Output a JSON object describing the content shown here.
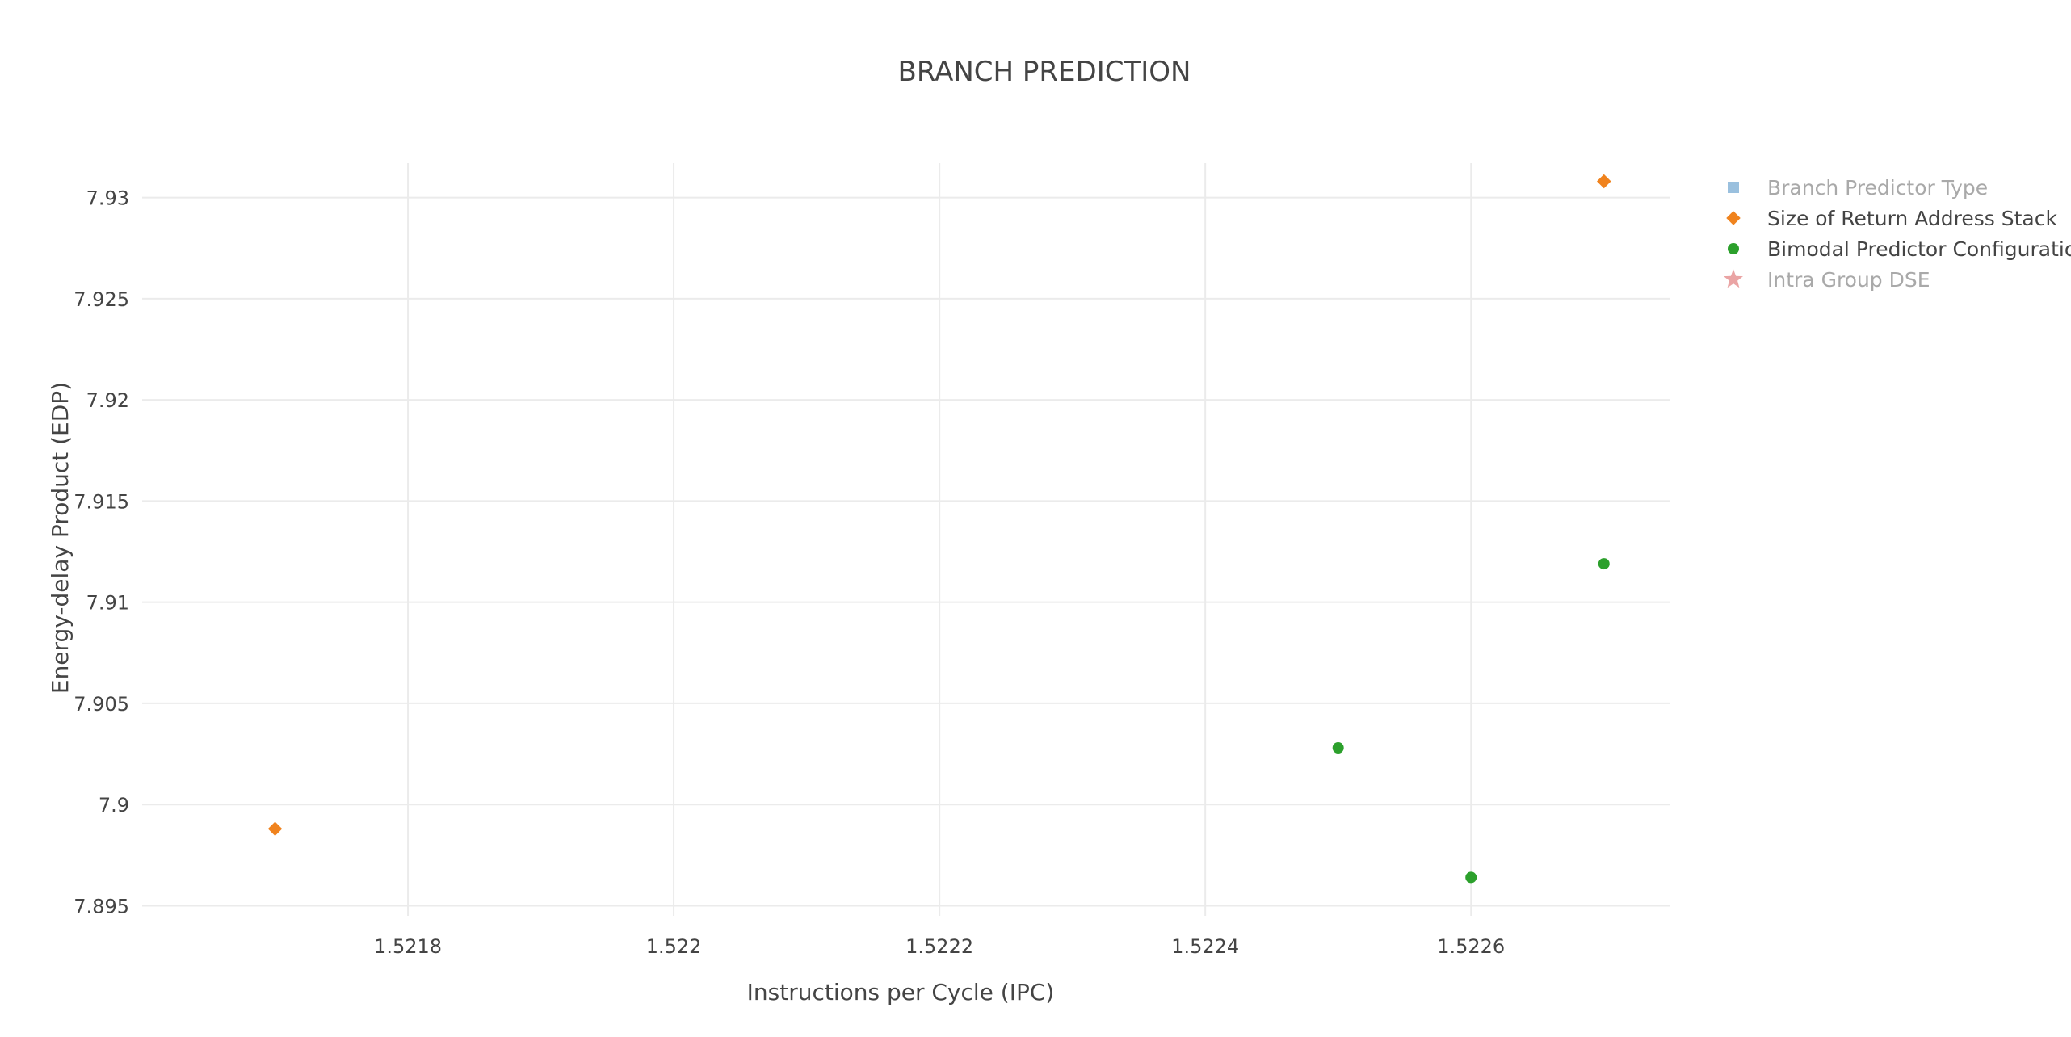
{
  "chart_data": {
    "type": "scatter",
    "title": "BRANCH PREDICTION",
    "xlabel": "Instructions per Cycle (IPC)",
    "ylabel": "Energy-delay Product (EDP)",
    "xlim": [
      1.5216,
      1.52275
    ],
    "ylim": [
      7.8945,
      7.9317
    ],
    "xticks": [
      1.5218,
      1.522,
      1.5222,
      1.5224,
      1.5226
    ],
    "xtick_labels": [
      "1.5218",
      "1.522",
      "1.5222",
      "1.5224",
      "1.5226"
    ],
    "yticks": [
      7.895,
      7.9,
      7.905,
      7.91,
      7.915,
      7.92,
      7.925,
      7.93
    ],
    "ytick_labels": [
      "7.895",
      "7.9",
      "7.905",
      "7.91",
      "7.915",
      "7.92",
      "7.925",
      "7.93"
    ],
    "grid": true,
    "legend_position": "top-right",
    "series": [
      {
        "name": "Branch Predictor Type",
        "marker": "square",
        "color": "#8fb9da",
        "hidden": true,
        "x": [],
        "y": []
      },
      {
        "name": "Size of Return Address Stack",
        "marker": "diamond",
        "color": "#f0831e",
        "hidden": false,
        "x": [
          1.5217,
          1.5227
        ],
        "y": [
          7.8988,
          7.9308
        ]
      },
      {
        "name": "Bimodal Predictor Configuration",
        "marker": "circle",
        "color": "#2ca02c",
        "hidden": false,
        "x": [
          1.5225,
          1.5226,
          1.5227
        ],
        "y": [
          7.9028,
          7.8964,
          7.9119
        ]
      },
      {
        "name": "Intra Group DSE",
        "marker": "star",
        "color": "#e89a9a",
        "hidden": true,
        "x": [],
        "y": []
      }
    ]
  }
}
